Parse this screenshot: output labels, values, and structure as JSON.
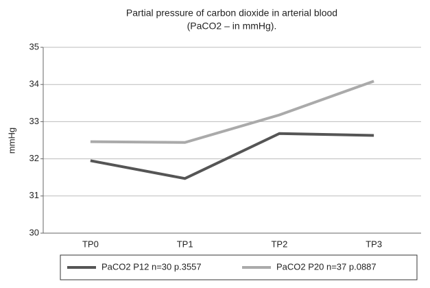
{
  "chart_data": {
    "type": "line",
    "title": [
      "Partial pressure of carbon dioxide in arterial blood",
      "(PaCO2 – in mmHg)."
    ],
    "y_label": "mmHg",
    "categories": [
      "TP0",
      "TP1",
      "TP2",
      "TP3"
    ],
    "series": [
      {
        "name": "PaCO2 P12 n=30 p.3557",
        "color": "#555555",
        "values": [
          31.95,
          31.47,
          32.68,
          32.63
        ]
      },
      {
        "name": "PaCO2 P20 n=37 p.0887",
        "color": "#aaaaaa",
        "values": [
          32.46,
          32.44,
          33.18,
          34.09
        ]
      }
    ],
    "ylim": [
      30,
      35
    ],
    "yticks": [
      30,
      31,
      32,
      33,
      34,
      35
    ],
    "grid": true,
    "legend": "bottom"
  }
}
